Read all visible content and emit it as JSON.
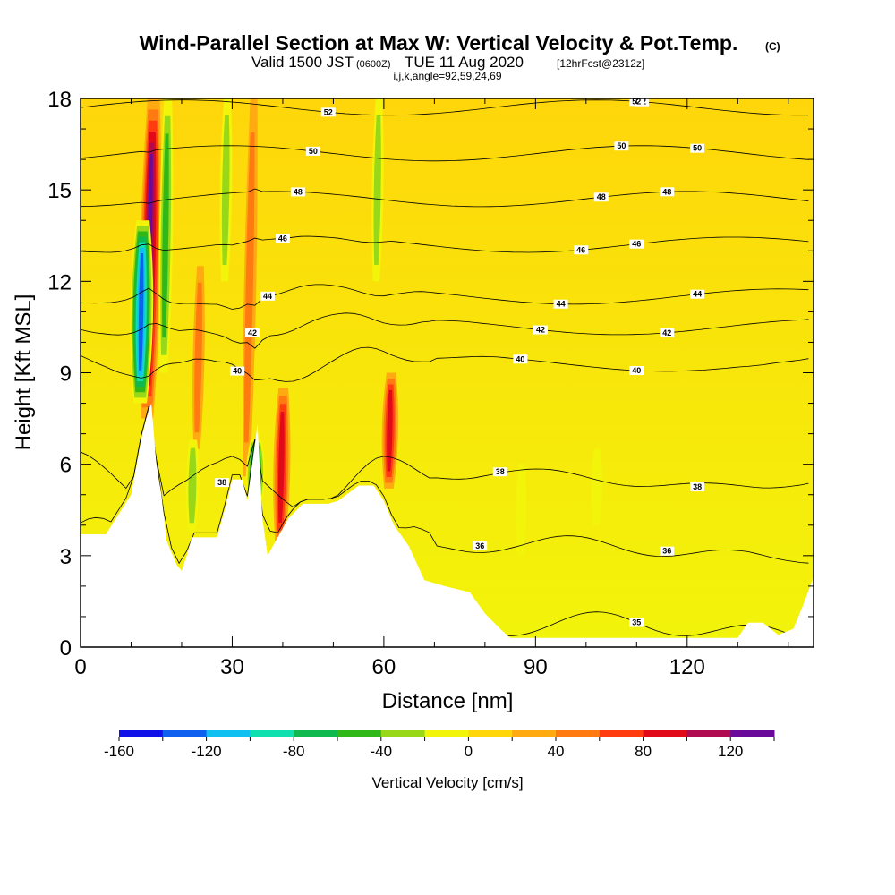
{
  "chart_data": {
    "type": "heatmap",
    "title": "Wind-Parallel Section at Max W: Vertical Velocity & Pot.Temp.",
    "title_badge": "(C)",
    "subtitle_parts": [
      "Valid 1500 JST",
      "(0600Z)",
      "TUE 11 Aug 2020",
      "[12hrFcst@2312z]"
    ],
    "subsubtitle": "i,j,k,angle=92,59,24,69",
    "xlabel": "Distance [nm]",
    "ylabel": "Height [Kft MSL]",
    "xlim": [
      0,
      145
    ],
    "ylim": [
      0,
      18
    ],
    "x_ticks": [
      0,
      30,
      60,
      90,
      120
    ],
    "y_ticks": [
      0,
      3,
      6,
      9,
      12,
      15,
      18
    ],
    "colorbar": {
      "label": "Vertical Velocity [cm/s]",
      "range": [
        -160,
        140
      ],
      "step": 20,
      "tick_labels": [
        "-160",
        "-120",
        "-80",
        "-40",
        "0",
        "40",
        "80",
        "120"
      ],
      "colors": [
        "#1010e8",
        "#1060f0",
        "#10c0f0",
        "#10e0b0",
        "#10b850",
        "#30b818",
        "#98d818",
        "#f2f40a",
        "#ffd60a",
        "#ffaa10",
        "#ff7a10",
        "#ff3c10",
        "#e00a18",
        "#b00a50",
        "#6a0a9a"
      ]
    },
    "terrain_kft": [
      [
        0,
        3.7
      ],
      [
        5,
        3.7
      ],
      [
        10,
        5
      ],
      [
        12,
        6.8
      ],
      [
        13,
        7.5
      ],
      [
        14,
        8
      ],
      [
        15,
        6
      ],
      [
        16,
        5
      ],
      [
        17,
        3.5
      ],
      [
        19,
        2.7
      ],
      [
        20,
        2.5
      ],
      [
        21,
        3
      ],
      [
        22,
        3.6
      ],
      [
        27,
        3.6
      ],
      [
        29,
        4.8
      ],
      [
        30,
        5.5
      ],
      [
        32,
        5.5
      ],
      [
        33,
        4.8
      ],
      [
        35,
        7.3
      ],
      [
        36,
        4.2
      ],
      [
        37,
        3
      ],
      [
        39,
        3.6
      ],
      [
        41,
        4.2
      ],
      [
        44,
        4.7
      ],
      [
        49,
        4.7
      ],
      [
        51,
        4.8
      ],
      [
        55,
        5.3
      ],
      [
        58,
        5.3
      ],
      [
        60,
        4.8
      ],
      [
        62,
        4
      ],
      [
        65,
        3.3
      ],
      [
        68,
        2.2
      ],
      [
        72,
        2
      ],
      [
        77,
        1.8
      ],
      [
        80,
        1.1
      ],
      [
        83,
        0.6
      ],
      [
        85,
        0.3
      ],
      [
        95,
        0.3
      ],
      [
        130,
        0.3
      ],
      [
        132,
        0.8
      ],
      [
        135,
        0.8
      ],
      [
        138,
        0.4
      ],
      [
        141,
        0.6
      ],
      [
        143,
        1.4
      ],
      [
        145,
        2.3
      ]
    ],
    "updraft_cores": [
      {
        "x": 13.2,
        "z0": 7.5,
        "z1": 18,
        "w": 130
      },
      {
        "x": 39.5,
        "z0": 3.3,
        "z1": 8.5,
        "w": 90
      },
      {
        "x": 61.0,
        "z0": 5.2,
        "z1": 9.0,
        "w": 85
      },
      {
        "x": 32.8,
        "z0": 5.6,
        "z1": 18,
        "w": 45
      },
      {
        "x": 23.0,
        "z0": 6.5,
        "z1": 12.5,
        "w": 40
      }
    ],
    "downdraft_cores": [
      {
        "x": 11.8,
        "z0": 8.0,
        "z1": 14.0,
        "w": -150
      },
      {
        "x": 34.5,
        "z0": 4.5,
        "z1": 6.8,
        "w": -110
      },
      {
        "x": 16.5,
        "z0": 9.0,
        "z1": 18,
        "w": -60
      },
      {
        "x": 22.0,
        "z0": 3.8,
        "z1": 6.8,
        "w": -55
      },
      {
        "x": 28.5,
        "z0": 12,
        "z1": 18,
        "w": -45
      },
      {
        "x": 58.5,
        "z0": 12,
        "z1": 18,
        "w": -40
      },
      {
        "x": 102.0,
        "z0": 4.0,
        "z1": 6.5,
        "w": -35
      },
      {
        "x": 87.0,
        "z0": 3.0,
        "z1": 6.0,
        "w": -30
      }
    ],
    "theta_contours": [
      {
        "level": 35,
        "label": "35",
        "baseline": 0.6
      },
      {
        "level": 36,
        "label": "36",
        "baseline": 3.2
      },
      {
        "level": 38,
        "label": "38",
        "baseline": 5.5
      },
      {
        "level": 40,
        "label": "40",
        "baseline": 9.3
      },
      {
        "level": 42,
        "label": "42",
        "baseline": 10.5
      },
      {
        "level": 44,
        "label": "44",
        "baseline": 11.5
      },
      {
        "level": 46,
        "label": "46",
        "baseline": 13.2
      },
      {
        "level": 48,
        "label": "48",
        "baseline": 14.7
      },
      {
        "level": 50,
        "label": "50",
        "baseline": 16.2
      },
      {
        "level": 52,
        "label": "52",
        "baseline": 17.7
      }
    ]
  }
}
